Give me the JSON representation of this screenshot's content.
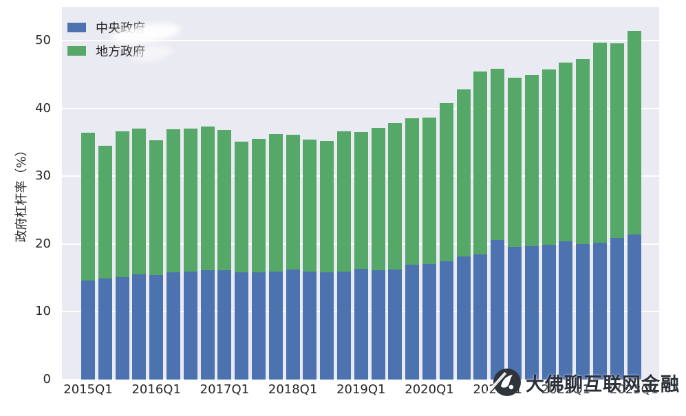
{
  "figure": {
    "background": "#ffffff",
    "plot_background": "#eaeaf2",
    "grid_color": "#ffffff",
    "tick_color": "#262626"
  },
  "chart_data": {
    "type": "bar",
    "stacked": true,
    "title": "",
    "xlabel": "",
    "ylabel": "政府杠杆率（%）",
    "ylim": [
      0,
      55
    ],
    "yticks": [
      0,
      10,
      20,
      30,
      40,
      50
    ],
    "grid": "horizontal",
    "legend_position": "upper-left",
    "categories": [
      "2015Q1",
      "2015Q2",
      "2015Q3",
      "2015Q4",
      "2016Q1",
      "2016Q2",
      "2016Q3",
      "2016Q4",
      "2017Q1",
      "2017Q2",
      "2017Q3",
      "2017Q4",
      "2018Q1",
      "2018Q2",
      "2018Q3",
      "2018Q4",
      "2019Q1",
      "2019Q2",
      "2019Q3",
      "2019Q4",
      "2020Q1",
      "2020Q2",
      "2020Q3",
      "2020Q4",
      "2021Q1",
      "2021Q2",
      "2021Q3",
      "2021Q4",
      "2022Q1",
      "2022Q2",
      "2022Q3",
      "2022Q4",
      "2023Q1"
    ],
    "x_tick_labels_shown": [
      "2015Q1",
      "2016Q1",
      "2017Q1",
      "2018Q1",
      "2019Q1",
      "2020Q1",
      "2021Q1",
      "2022Q1",
      "2023Q1"
    ],
    "series": [
      {
        "name": "中央政府",
        "color": "#4C72B0",
        "values": [
          14.6,
          14.9,
          15.1,
          15.5,
          15.4,
          15.8,
          15.9,
          16.1,
          16.1,
          15.8,
          15.8,
          15.9,
          16.2,
          15.9,
          15.8,
          15.9,
          16.3,
          16.1,
          16.2,
          16.9,
          17.0,
          17.5,
          18.2,
          18.5,
          20.6,
          19.6,
          19.7,
          19.9,
          20.4,
          20.0,
          20.2,
          20.9,
          21.4
        ]
      },
      {
        "name": "地方政府",
        "color": "#55A868",
        "values": [
          21.8,
          19.6,
          21.5,
          21.5,
          19.9,
          21.1,
          21.1,
          21.2,
          20.7,
          19.3,
          19.7,
          20.3,
          19.9,
          19.5,
          19.4,
          20.7,
          20.2,
          21.0,
          21.7,
          21.7,
          21.7,
          23.3,
          24.6,
          27.0,
          25.3,
          25.0,
          25.3,
          25.9,
          26.4,
          27.3,
          29.5,
          28.7,
          30.1
        ]
      }
    ],
    "totals": [
      36.4,
      34.5,
      36.6,
      37.0,
      35.3,
      36.9,
      37.0,
      37.3,
      36.8,
      35.1,
      35.5,
      36.2,
      36.1,
      35.4,
      35.2,
      36.6,
      36.5,
      37.1,
      37.9,
      38.6,
      38.7,
      40.8,
      42.8,
      45.5,
      45.9,
      44.6,
      45.0,
      45.8,
      46.8,
      47.3,
      49.7,
      49.6,
      51.5
    ]
  },
  "watermark": {
    "text": "大佛聊互联网金融",
    "icon": "buddha-hand-logo",
    "text_color": "#2b3038"
  }
}
